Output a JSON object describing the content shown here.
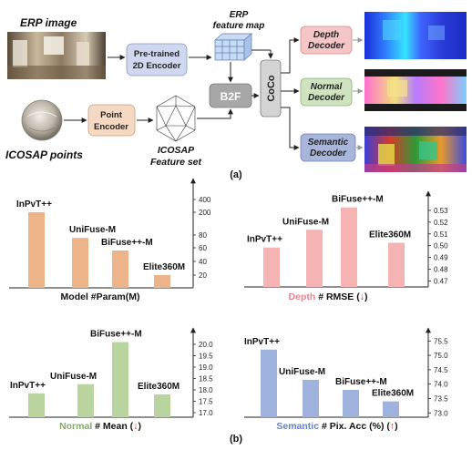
{
  "diagram": {
    "erp_image_label": "ERP image",
    "encoder_2d": [
      "Pre-trained",
      "2D Encoder"
    ],
    "erp_feature_map": [
      "ERP",
      "feature map"
    ],
    "b2f": "B2F",
    "coco": "CoCo",
    "point_encoder": [
      "Point",
      "Encoder"
    ],
    "icosap_points_label": "ICOSAP points",
    "icosap_feature_set": [
      "ICOSAP",
      "Feature set"
    ],
    "depth_decoder": [
      "Depth",
      "Decoder"
    ],
    "normal_decoder": [
      "Normal",
      "Decoder"
    ],
    "semantic_decoder": [
      "Semantic",
      "Decoder"
    ],
    "caption_a": "(a)",
    "caption_b": "(b)",
    "colors": {
      "encoder_fill": "#cfd8ee",
      "point_encoder_fill": "#f6d9c3",
      "b2f_fill": "#a7a7a7",
      "coco_fill": "#d4d4d4",
      "depth_fill": "#f6c6c6",
      "normal_fill": "#cfe3c1",
      "semantic_fill": "#a9b6db"
    }
  },
  "chart_data": [
    {
      "type": "bar",
      "title": "Model #Param(M)",
      "categories": [
        "InPvT++",
        "UniFuse-M",
        "BiFuse++-M",
        "Elite360M"
      ],
      "values": [
        200,
        75.4,
        56.0,
        20.0
      ],
      "yticks": [
        "20",
        "40",
        "60",
        "80",
        "200",
        "400"
      ],
      "color": "#edb48a"
    },
    {
      "type": "bar",
      "title_parts": [
        "Depth",
        " # RMSE (",
        "↓",
        ")"
      ],
      "categories": [
        "InPvT++",
        "UniFuse-M",
        "BiFuse++-M",
        "Elite360M"
      ],
      "values": [
        0.4985,
        0.5135,
        0.5325,
        0.5025
      ],
      "ylim": [
        0.465,
        0.54
      ],
      "yticks": [
        "0.47",
        "0.48",
        "0.49",
        "0.50",
        "0.51",
        "0.52",
        "0.53"
      ],
      "color": "#f5b3b3"
    },
    {
      "type": "bar",
      "title_parts": [
        "Normal",
        " # Mean (",
        "↓",
        ")"
      ],
      "categories": [
        "InPvT++",
        "UniFuse-M",
        "BiFuse++-M",
        "Elite360M"
      ],
      "values": [
        17.85,
        18.25,
        20.1,
        17.8
      ],
      "ylim": [
        16.8,
        20.4
      ],
      "yticks": [
        "17.0",
        "17.5",
        "18.0",
        "18.5",
        "19.0",
        "19.5",
        "20.0"
      ],
      "color": "#b9d49e"
    },
    {
      "type": "bar",
      "title_parts": [
        "Semantic",
        " # Pix. Acc (%) (",
        "↑",
        ")"
      ],
      "categories": [
        "InPvT++",
        "UniFuse-M",
        "BiFuse++-M",
        "Elite360M"
      ],
      "values": [
        75.2,
        74.15,
        73.8,
        73.4
      ],
      "ylim": [
        72.85,
        75.7
      ],
      "yticks": [
        "73.0",
        "73.5",
        "74.0",
        "74.5",
        "75.0",
        "75.5"
      ],
      "color": "#9eb2dd"
    }
  ]
}
